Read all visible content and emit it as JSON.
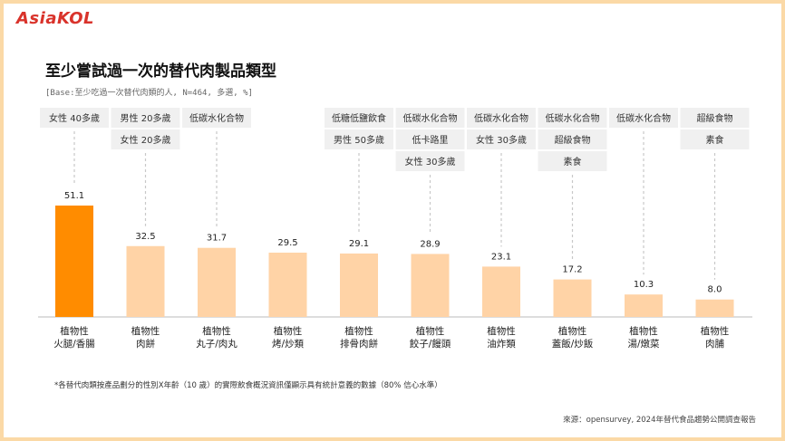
{
  "brand": "AsiaKOL",
  "title": "至少嘗試過一次的替代肉製品類型",
  "base_note": "[Base:至少吃過一次替代肉類的人, N=464, 多選, %]",
  "footnote": "*各替代肉類按產品劃分的性別X年齡（10 歲）的實際飲食概況資訊僅顯示具有統計意義的數據（80% 信心水準）",
  "source": "來源：opensurvey, 2024年替代食品趨勢公開調查報告",
  "colors": {
    "highlight": "#ff8c00",
    "bar": "#ffd3a6",
    "tag_bg": "#f0f0f0",
    "axis": "#bbbbbb",
    "dash": "#c8c8c8",
    "frame": "#fbd9a6"
  },
  "chart_data": {
    "type": "bar",
    "categories": [
      [
        "植物性",
        "火腿/香腸"
      ],
      [
        "植物性",
        "肉餅"
      ],
      [
        "植物性",
        "丸子/肉丸"
      ],
      [
        "植物性",
        "烤/炒類"
      ],
      [
        "植物性",
        "排骨肉餅"
      ],
      [
        "植物性",
        "餃子/饅頭"
      ],
      [
        "植物性",
        "油炸類"
      ],
      [
        "植物性",
        "蓋飯/炒飯"
      ],
      [
        "植物性",
        "湯/燉菜"
      ],
      [
        "植物性",
        "肉脯"
      ]
    ],
    "values": [
      51.1,
      32.5,
      31.7,
      29.5,
      29.1,
      28.9,
      23.1,
      17.2,
      10.3,
      8.0
    ],
    "value_labels": [
      "51.1",
      "32.5",
      "31.7",
      "29.5",
      "29.1",
      "28.9",
      "23.1",
      "17.2",
      "10.3",
      "8.0"
    ],
    "highlight_index": 0,
    "ylim": [
      0,
      60
    ],
    "tags": [
      [
        "女性 40多歲"
      ],
      [
        "男性 20多歲",
        "女性 20多歲"
      ],
      [
        "低碳水化合物"
      ],
      [],
      [
        "低糖低鹽飲食",
        "男性 50多歲"
      ],
      [
        "低碳水化合物",
        "低卡路里",
        "女性 30多歲"
      ],
      [
        "低碳水化合物",
        "女性 30多歲"
      ],
      [
        "低碳水化合物",
        "超級食物",
        "素食"
      ],
      [
        "低碳水化合物"
      ],
      [
        "超級食物",
        "素食"
      ]
    ]
  }
}
